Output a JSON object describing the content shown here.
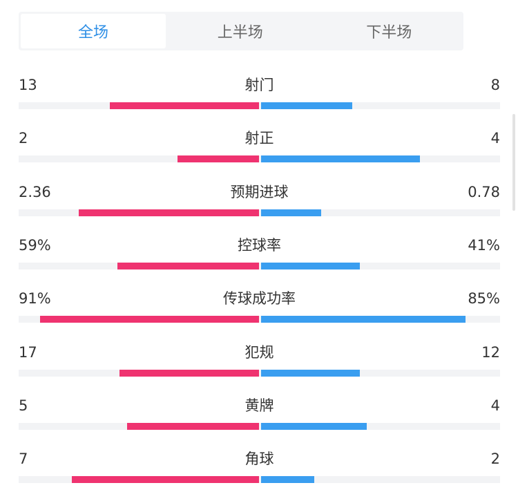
{
  "tabs": [
    {
      "label": "全场",
      "active": true
    },
    {
      "label": "上半场",
      "active": false
    },
    {
      "label": "下半场",
      "active": false
    }
  ],
  "colors": {
    "home": "#ef3370",
    "away": "#3a9ef0",
    "active_tab": "#2e8fe6"
  },
  "stats": [
    {
      "label": "射门",
      "home": "13",
      "away": "8",
      "home_share": 0.62,
      "away_share": 0.38
    },
    {
      "label": "射正",
      "home": "2",
      "away": "4",
      "home_share": 0.34,
      "away_share": 0.66
    },
    {
      "label": "预期进球",
      "home": "2.36",
      "away": "0.78",
      "home_share": 0.75,
      "away_share": 0.25
    },
    {
      "label": "控球率",
      "home": "59%",
      "away": "41%",
      "home_share": 0.59,
      "away_share": 0.41
    },
    {
      "label": "传球成功率",
      "home": "91%",
      "away": "85%",
      "home_share": 0.91,
      "away_share": 0.85
    },
    {
      "label": "犯规",
      "home": "17",
      "away": "12",
      "home_share": 0.58,
      "away_share": 0.41
    },
    {
      "label": "黄牌",
      "home": "5",
      "away": "4",
      "home_share": 0.55,
      "away_share": 0.44
    },
    {
      "label": "角球",
      "home": "7",
      "away": "2",
      "home_share": 0.78,
      "away_share": 0.22
    }
  ]
}
